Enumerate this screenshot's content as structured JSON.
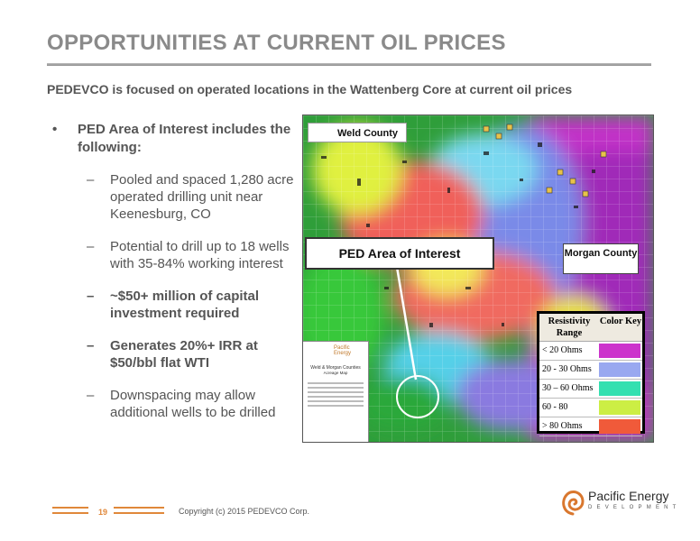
{
  "slide": {
    "title": "OPPORTUNITIES AT CURRENT OIL PRICES",
    "subtitle": "PEDEVCO is focused on operated locations in the Wattenberg Core at current oil prices"
  },
  "bullets": {
    "marker": "•",
    "main": "PED Area of Interest includes the following:",
    "dash": "–",
    "subs": [
      {
        "text": "Pooled and spaced 1,280 acre operated drilling unit near Keenesburg, CO",
        "bold": false
      },
      {
        "text": "Potential to drill up to 18 wells with 35-84% working interest",
        "bold": false
      },
      {
        "text": "~$50+ million of capital investment required",
        "bold": true
      },
      {
        "text": "Generates 20%+ IRR at $50/bbl flat WTI",
        "bold": true
      },
      {
        "text": "Downspacing may allow additional wells to be drilled",
        "bold": false
      }
    ]
  },
  "map": {
    "weld_label": "Weld County",
    "ped_label": "PED Area of Interest",
    "morgan_label": "Morgan County",
    "legend": {
      "header_range": "Resistivity Range",
      "header_color": "Color Key",
      "rows": [
        {
          "range": "< 20 Ohms",
          "color": "#cc33cc"
        },
        {
          "range": "20 - 30 Ohms",
          "color": "#99a8f0"
        },
        {
          "range": "30 – 60 Ohms",
          "color": "#33e0b0"
        },
        {
          "range": "60 - 80",
          "color": "#ccee44"
        },
        {
          "range": "> 80 Ohms",
          "color": "#f05a3a"
        }
      ]
    },
    "inset": {
      "brand": "Pacific Energy",
      "title": "Weld & Morgan Counties",
      "subtitle": "Acreage Map"
    }
  },
  "footer": {
    "page_number": "19",
    "copyright": "Copyright (c) 2015 PEDEVCO Corp.",
    "logo_name": "Pacific Energy",
    "logo_sub": "DEVELOPMENT",
    "accent": "#e0883a"
  }
}
